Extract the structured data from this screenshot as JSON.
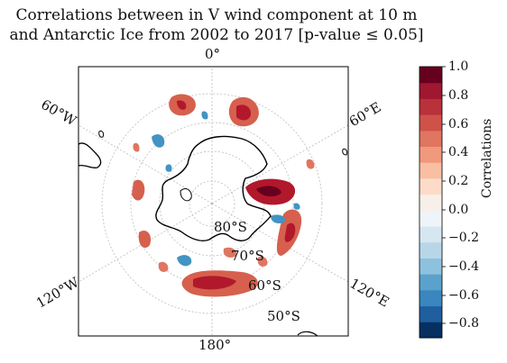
{
  "title_line1": "Correlations between in V wind component at 10 m",
  "title_line2": "and Antarctic Ice from 2002 to 2017 [p-value ≤ 0.05]",
  "map": {
    "projection": "south-polar-stereographic",
    "meridian_labels": [
      "0°",
      "60°E",
      "120°E",
      "180°",
      "120°W",
      "60°W"
    ],
    "parallel_labels": [
      "80°S",
      "70°S",
      "60°S",
      "50°S"
    ],
    "colors": {
      "negative": "#2f79b5",
      "positive": "#c0373a",
      "coastline": "#000000",
      "grid": "#bdbdbd"
    }
  },
  "colorbar": {
    "label": "Correlations",
    "ticks": [
      "1.0",
      "0.8",
      "0.6",
      "0.4",
      "0.2",
      "0.0",
      "−0.2",
      "−0.4",
      "−0.6",
      "−0.8"
    ],
    "range": [
      -0.9,
      1.0
    ],
    "colors": [
      "#053061",
      "#1f5e9f",
      "#3a86be",
      "#5aa2cc",
      "#8ec1dd",
      "#b7d7e9",
      "#d6e7f1",
      "#eef4f8",
      "#f9efe9",
      "#fcdcc8",
      "#f8bfa3",
      "#f1997c",
      "#e07560",
      "#ce5249",
      "#b9313a",
      "#9f1730",
      "#67001f"
    ]
  }
}
